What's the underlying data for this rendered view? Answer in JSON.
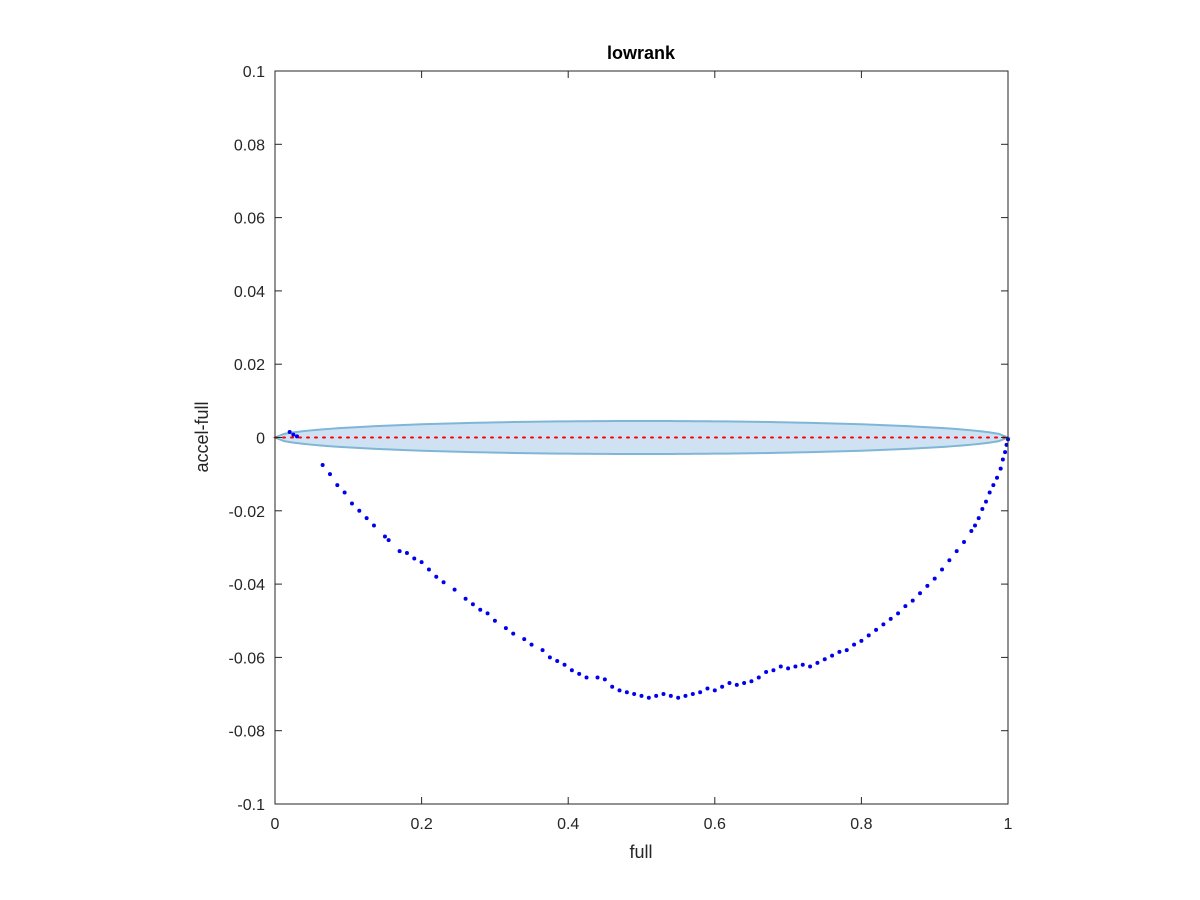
{
  "chart_data": {
    "type": "scatter",
    "title": "lowrank",
    "xlabel": "full",
    "ylabel": "accel-full",
    "xlim": [
      0,
      1
    ],
    "ylim": [
      -0.1,
      0.1
    ],
    "grid": false,
    "legend": "none",
    "x_ticks": [
      "0",
      "0.2",
      "0.4",
      "0.6",
      "0.8",
      "1"
    ],
    "y_ticks": [
      "0.1",
      "0.08",
      "0.06",
      "0.04",
      "0.02",
      "0",
      "-0.02",
      "-0.04",
      "-0.06",
      "-0.08",
      "-0.1"
    ],
    "x_tick_values": [
      0,
      0.2,
      0.4,
      0.6,
      0.8,
      1
    ],
    "y_tick_values": [
      0.1,
      0.08,
      0.06,
      0.04,
      0.02,
      0,
      -0.02,
      -0.04,
      -0.06,
      -0.08,
      -0.1
    ],
    "colors": {
      "points": "#0000ee",
      "zero_line": "#ff0000",
      "band_fill": "#cfe2f3",
      "band_edge": "#7fb6d6",
      "axes": "#262626"
    },
    "reference_line": {
      "y": 0,
      "style": "dotted"
    },
    "confidence_band": {
      "x_range": [
        0,
        1
      ],
      "half_width_max": 0.0045
    },
    "series": [
      {
        "points": [
          [
            0.02,
            0.0015
          ],
          [
            0.025,
            0.0008
          ],
          [
            0.03,
            0.0003
          ],
          [
            0.065,
            -0.0075
          ],
          [
            0.075,
            -0.01
          ],
          [
            0.085,
            -0.013
          ],
          [
            0.095,
            -0.015
          ],
          [
            0.105,
            -0.018
          ],
          [
            0.115,
            -0.02
          ],
          [
            0.125,
            -0.022
          ],
          [
            0.135,
            -0.024
          ],
          [
            0.15,
            -0.027
          ],
          [
            0.155,
            -0.028
          ],
          [
            0.17,
            -0.031
          ],
          [
            0.18,
            -0.0315
          ],
          [
            0.19,
            -0.033
          ],
          [
            0.2,
            -0.034
          ],
          [
            0.21,
            -0.036
          ],
          [
            0.22,
            -0.038
          ],
          [
            0.23,
            -0.0395
          ],
          [
            0.245,
            -0.0415
          ],
          [
            0.26,
            -0.044
          ],
          [
            0.27,
            -0.0455
          ],
          [
            0.28,
            -0.047
          ],
          [
            0.29,
            -0.048
          ],
          [
            0.3,
            -0.05
          ],
          [
            0.315,
            -0.052
          ],
          [
            0.325,
            -0.0535
          ],
          [
            0.34,
            -0.055
          ],
          [
            0.35,
            -0.0565
          ],
          [
            0.365,
            -0.058
          ],
          [
            0.375,
            -0.06
          ],
          [
            0.385,
            -0.061
          ],
          [
            0.395,
            -0.062
          ],
          [
            0.405,
            -0.0635
          ],
          [
            0.415,
            -0.0645
          ],
          [
            0.425,
            -0.0655
          ],
          [
            0.44,
            -0.0655
          ],
          [
            0.45,
            -0.066
          ],
          [
            0.46,
            -0.068
          ],
          [
            0.47,
            -0.069
          ],
          [
            0.48,
            -0.0695
          ],
          [
            0.49,
            -0.07
          ],
          [
            0.5,
            -0.0705
          ],
          [
            0.51,
            -0.071
          ],
          [
            0.52,
            -0.0705
          ],
          [
            0.53,
            -0.07
          ],
          [
            0.54,
            -0.0705
          ],
          [
            0.55,
            -0.071
          ],
          [
            0.56,
            -0.0705
          ],
          [
            0.57,
            -0.07
          ],
          [
            0.58,
            -0.0695
          ],
          [
            0.59,
            -0.0685
          ],
          [
            0.6,
            -0.069
          ],
          [
            0.61,
            -0.068
          ],
          [
            0.62,
            -0.067
          ],
          [
            0.63,
            -0.0675
          ],
          [
            0.64,
            -0.067
          ],
          [
            0.65,
            -0.0665
          ],
          [
            0.66,
            -0.0655
          ],
          [
            0.67,
            -0.064
          ],
          [
            0.68,
            -0.0635
          ],
          [
            0.69,
            -0.0625
          ],
          [
            0.7,
            -0.063
          ],
          [
            0.71,
            -0.0625
          ],
          [
            0.72,
            -0.062
          ],
          [
            0.73,
            -0.0625
          ],
          [
            0.74,
            -0.0615
          ],
          [
            0.75,
            -0.0605
          ],
          [
            0.76,
            -0.0595
          ],
          [
            0.77,
            -0.0585
          ],
          [
            0.78,
            -0.058
          ],
          [
            0.79,
            -0.0565
          ],
          [
            0.8,
            -0.0555
          ],
          [
            0.81,
            -0.054
          ],
          [
            0.82,
            -0.0525
          ],
          [
            0.83,
            -0.051
          ],
          [
            0.84,
            -0.0495
          ],
          [
            0.85,
            -0.048
          ],
          [
            0.86,
            -0.046
          ],
          [
            0.87,
            -0.0445
          ],
          [
            0.88,
            -0.0425
          ],
          [
            0.89,
            -0.0405
          ],
          [
            0.9,
            -0.0385
          ],
          [
            0.91,
            -0.036
          ],
          [
            0.92,
            -0.0335
          ],
          [
            0.93,
            -0.031
          ],
          [
            0.94,
            -0.0285
          ],
          [
            0.95,
            -0.0255
          ],
          [
            0.955,
            -0.024
          ],
          [
            0.96,
            -0.022
          ],
          [
            0.965,
            -0.0195
          ],
          [
            0.97,
            -0.0175
          ],
          [
            0.975,
            -0.015
          ],
          [
            0.98,
            -0.013
          ],
          [
            0.985,
            -0.011
          ],
          [
            0.99,
            -0.0085
          ],
          [
            0.993,
            -0.006
          ],
          [
            0.996,
            -0.004
          ],
          [
            0.998,
            -0.002
          ],
          [
            1.0,
            -0.0005
          ]
        ]
      }
    ]
  }
}
